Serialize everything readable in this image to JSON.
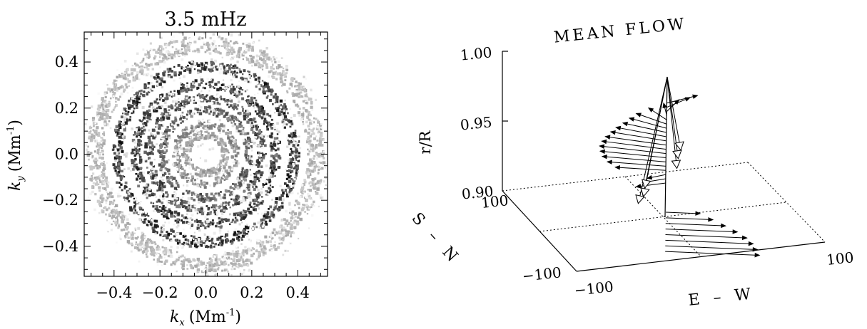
{
  "chart_data": [
    {
      "type": "heatmap",
      "title": "3.5 mHz",
      "xlabel": "k_x (Mm⁻¹)",
      "ylabel": "k_y (Mm⁻¹)",
      "xlabel_parts": {
        "k": "k",
        "sub": "x",
        "unit": "(Mm",
        "sup": "-1",
        "close": ")"
      },
      "ylabel_parts": {
        "k": "k",
        "sub": "y",
        "unit": "(Mm",
        "sup": "-1",
        "close": ")"
      },
      "xlim": [
        -0.53,
        0.53
      ],
      "ylim": [
        -0.53,
        0.53
      ],
      "x_ticks": [
        {
          "v": -0.4,
          "label": "−0.4"
        },
        {
          "v": -0.2,
          "label": "−0.2"
        },
        {
          "v": 0.0,
          "label": "0.0"
        },
        {
          "v": 0.2,
          "label": "0.2"
        },
        {
          "v": 0.4,
          "label": "0.4"
        }
      ],
      "y_ticks": [
        {
          "v": 0.4,
          "label": "0.4"
        },
        {
          "v": 0.2,
          "label": "0.2"
        },
        {
          "v": 0.0,
          "label": "0.0"
        },
        {
          "v": -0.2,
          "label": "−0.2"
        },
        {
          "v": -0.4,
          "label": "−0.4"
        }
      ],
      "rings": [
        {
          "r": 0.085,
          "intensity": 0.45,
          "width": 0.02
        },
        {
          "r": 0.13,
          "intensity": 0.55,
          "width": 0.02
        },
        {
          "r": 0.19,
          "intensity": 0.75,
          "width": 0.022
        },
        {
          "r": 0.245,
          "intensity": 0.85,
          "width": 0.024
        },
        {
          "r": 0.305,
          "intensity": 0.92,
          "width": 0.026
        },
        {
          "r": 0.385,
          "intensity": 0.95,
          "width": 0.028
        },
        {
          "r": 0.48,
          "intensity": 0.35,
          "width": 0.045
        }
      ]
    },
    {
      "type": "quiver-3d",
      "title": "MEAN FLOW",
      "zlabel": "r/R",
      "xlabel": "E – W",
      "ylabel": "S – N",
      "x_ticks": [
        "−100",
        "100"
      ],
      "y_ticks": [
        "−100",
        "100"
      ],
      "z_ticks": [
        {
          "v": 1.0,
          "label": "1.00"
        },
        {
          "v": 0.95,
          "label": "0.95"
        },
        {
          "v": 0.9,
          "label": "0.90"
        }
      ],
      "zlim": [
        0.9,
        1.0
      ],
      "lower_vectors": [
        {
          "depth": 0.906,
          "len": 0.88
        },
        {
          "depth": 0.91,
          "len": 0.86
        },
        {
          "depth": 0.914,
          "len": 0.82
        },
        {
          "depth": 0.918,
          "len": 0.76
        },
        {
          "depth": 0.922,
          "len": 0.67
        },
        {
          "depth": 0.926,
          "len": 0.56
        },
        {
          "depth": 0.93,
          "len": 0.44
        },
        {
          "depth": 0.934,
          "len": 0.32
        }
      ],
      "upper_vectors": [
        {
          "depth": 0.932,
          "ang": 200,
          "len": 0.22
        },
        {
          "depth": 0.935,
          "ang": 205,
          "len": 0.18
        },
        {
          "depth": 0.938,
          "ang": 210,
          "len": 0.15
        },
        {
          "depth": 0.941,
          "ang": 170,
          "len": 0.36
        },
        {
          "depth": 0.944,
          "ang": 168,
          "len": 0.42
        },
        {
          "depth": 0.947,
          "ang": 166,
          "len": 0.46
        },
        {
          "depth": 0.95,
          "ang": 164,
          "len": 0.48
        },
        {
          "depth": 0.953,
          "ang": 162,
          "len": 0.49
        },
        {
          "depth": 0.956,
          "ang": 160,
          "len": 0.48
        },
        {
          "depth": 0.959,
          "ang": 158,
          "len": 0.46
        },
        {
          "depth": 0.962,
          "ang": 155,
          "len": 0.43
        },
        {
          "depth": 0.965,
          "ang": 152,
          "len": 0.4
        },
        {
          "depth": 0.968,
          "ang": 148,
          "len": 0.36
        },
        {
          "depth": 0.971,
          "ang": 142,
          "len": 0.33
        },
        {
          "depth": 0.974,
          "ang": 135,
          "len": 0.3
        },
        {
          "depth": 0.977,
          "ang": 118,
          "len": 0.27
        },
        {
          "depth": 0.98,
          "ang": 95,
          "len": 0.25
        },
        {
          "depth": 0.983,
          "ang": 70,
          "len": 0.25
        },
        {
          "depth": 0.986,
          "ang": 50,
          "len": 0.25
        },
        {
          "depth": 0.989,
          "ang": 35,
          "len": 0.26
        }
      ],
      "open_head_vectors": [
        {
          "depth": 0.925,
          "ang": 205,
          "len": 0.28
        },
        {
          "depth": 0.93,
          "ang": 210,
          "len": 0.24
        },
        {
          "depth": 0.936,
          "ang": 190,
          "len": 0.2
        },
        {
          "depth": 0.95,
          "ang": 45,
          "len": 0.12
        },
        {
          "depth": 0.957,
          "ang": 15,
          "len": 0.1
        },
        {
          "depth": 0.963,
          "ang": 355,
          "len": 0.12
        }
      ]
    }
  ]
}
